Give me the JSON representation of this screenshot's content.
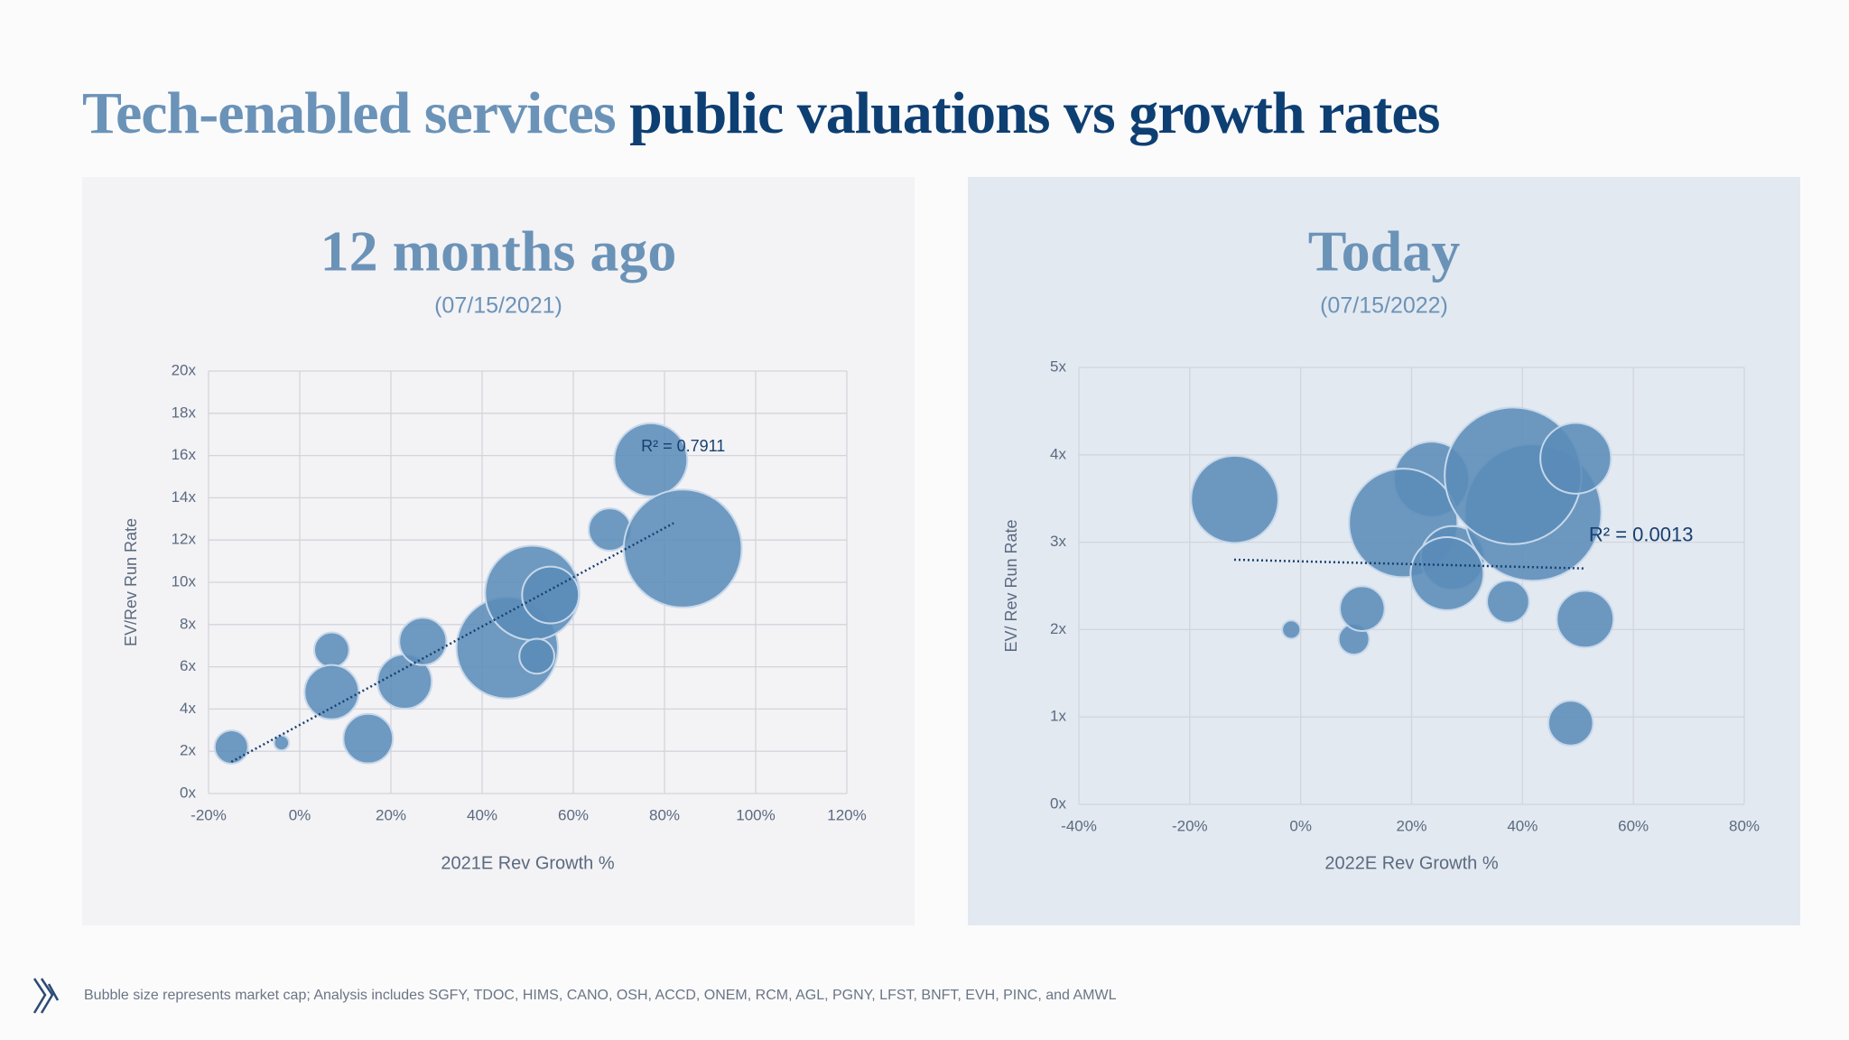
{
  "title_light": "Tech-enabled services",
  "title_dark": "public valuations vs growth rates",
  "footnote": "Bubble size represents market cap; Analysis includes SGFY, TDOC, HIMS, CANO, OSH, ACCD, ONEM, RCM, AGL, PGNY, LFST, BNFT, EVH, PINC, and AMWL",
  "chart_data": [
    {
      "type": "bubble",
      "title": "12 months ago",
      "subtitle": "(07/15/2021)",
      "x_label": "2021E Rev Growth %",
      "y_label": "EV/Rev Run Rate",
      "color": "#5b8cb8",
      "grid": true,
      "x": [
        -15,
        -4,
        7,
        7,
        15,
        23,
        27,
        45.5,
        51,
        55,
        52,
        68,
        77,
        84
      ],
      "values": [
        2.2,
        2.4,
        6.8,
        4.8,
        2.6,
        5.3,
        7.2,
        6.9,
        9.5,
        9.4,
        6.5,
        12.5,
        15.8,
        11.6
      ],
      "sizes": [
        20,
        4,
        22,
        53,
        44,
        53,
        40,
        185,
        160,
        58,
        22,
        32,
        96,
        250
      ],
      "trendline": {
        "x": [
          -15,
          82
        ],
        "values": [
          1.5,
          12.8
        ]
      },
      "annotation": "R² = 0.7911",
      "xlim": [
        -20,
        120
      ],
      "xticks": [
        {
          "value": -20,
          "label": "-20%"
        },
        {
          "value": 0,
          "label": "0%"
        },
        {
          "value": 20,
          "label": "20%"
        },
        {
          "value": 40,
          "label": "40%"
        },
        {
          "value": 60,
          "label": "60%"
        },
        {
          "value": 80,
          "label": "80%"
        },
        {
          "value": 100,
          "label": "100%"
        },
        {
          "value": 120,
          "label": "120%"
        }
      ],
      "ylim": [
        0,
        20
      ],
      "yticks": [
        {
          "value": 0,
          "label": "0x"
        },
        {
          "value": 2,
          "label": "2x"
        },
        {
          "value": 4,
          "label": "4x"
        },
        {
          "value": 6,
          "label": "6x"
        },
        {
          "value": 8,
          "label": "8x"
        },
        {
          "value": 10,
          "label": "10x"
        },
        {
          "value": 12,
          "label": "12x"
        },
        {
          "value": 14,
          "label": "14x"
        },
        {
          "value": 16,
          "label": "16x"
        },
        {
          "value": 18,
          "label": "18x"
        },
        {
          "value": 20,
          "label": "20x"
        }
      ]
    },
    {
      "type": "bubble",
      "title": "Today",
      "subtitle": "(07/15/2022)",
      "x_label": "2022E Rev Growth %",
      "y_label": "EV/ Rev Run Rate",
      "color": "#5b8cb8",
      "grid": true,
      "x": [
        -11.9,
        -1.7,
        9.6,
        11.1,
        23.6,
        18.5,
        27.4,
        26.4,
        37.4,
        41.9,
        38.3,
        49.6,
        51.3,
        48.7
      ],
      "values": [
        3.49,
        2.0,
        1.89,
        2.24,
        3.72,
        3.22,
        2.82,
        2.64,
        2.32,
        3.34,
        3.76,
        3.96,
        2.12,
        0.93
      ],
      "sizes": [
        137,
        6,
        17,
        36,
        102,
        212,
        73,
        96,
        32,
        336,
        336,
        90,
        58,
        36
      ],
      "trendline": {
        "x": [
          -12,
          51
        ],
        "values": [
          2.8,
          2.7
        ]
      },
      "annotation": "R² = 0.0013",
      "xlim": [
        -40,
        80
      ],
      "xticks": [
        {
          "value": -40,
          "label": "-40%"
        },
        {
          "value": -20,
          "label": "-20%"
        },
        {
          "value": 0,
          "label": "0%"
        },
        {
          "value": 20,
          "label": "20%"
        },
        {
          "value": 40,
          "label": "40%"
        },
        {
          "value": 60,
          "label": "60%"
        },
        {
          "value": 80,
          "label": "80%"
        }
      ],
      "ylim": [
        0,
        5
      ],
      "yticks": [
        {
          "value": 0,
          "label": "0x"
        },
        {
          "value": 1,
          "label": "1x"
        },
        {
          "value": 2,
          "label": "2x"
        },
        {
          "value": 3,
          "label": "3x"
        },
        {
          "value": 4,
          "label": "4x"
        },
        {
          "value": 5,
          "label": "5x"
        }
      ]
    }
  ]
}
